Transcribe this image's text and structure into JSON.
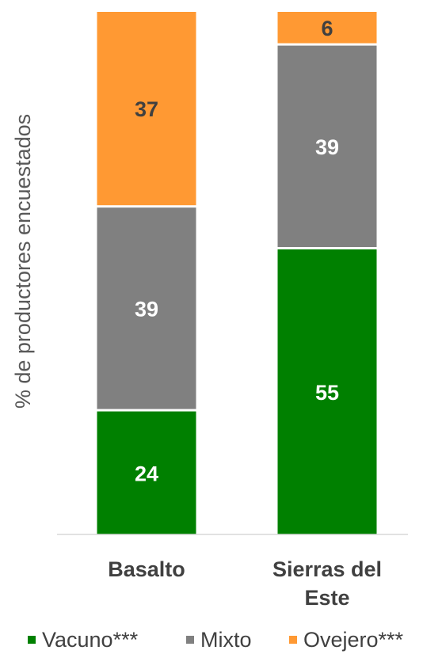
{
  "chart_data": {
    "type": "bar",
    "stacked": true,
    "title": "",
    "xlabel": "",
    "ylabel": "% de productores encuestados",
    "ylim": [
      0,
      100
    ],
    "grid": false,
    "legend_position": "bottom",
    "categories": [
      [
        "Basalto"
      ],
      [
        "Sierras del",
        "Este"
      ]
    ],
    "series": [
      {
        "name": "Vacuno***",
        "color": "#008000",
        "label_color": "#ffffff",
        "values": [
          24,
          55
        ]
      },
      {
        "name": "Mixto",
        "color": "#808080",
        "label_color": "#ffffff",
        "values": [
          39,
          39
        ]
      },
      {
        "name": "Ovejero***",
        "color": "#ff9933",
        "label_color": "#404040",
        "values": [
          37,
          6
        ]
      }
    ]
  }
}
